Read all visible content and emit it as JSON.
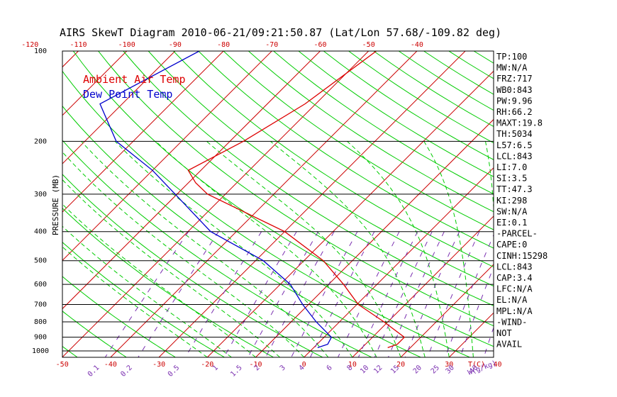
{
  "chart_data": {
    "type": "line",
    "title": "AIRS SkewT Diagram 2010-06-21/09:21:50.87 (Lat/Lon 57.68/-109.82 deg)",
    "ylabel": "PRESSURE (MB)",
    "xlabel": "T(C)",
    "mixing_ratio_unit": "W(g/kg)",
    "pressure_ticks": [
      100,
      200,
      300,
      400,
      500,
      600,
      700,
      800,
      900,
      1000
    ],
    "top_temp_ticks": [
      -120,
      -110,
      -100,
      -90,
      -80,
      -70,
      -60,
      -50,
      -40
    ],
    "bottom_temp_ticks": [
      -50,
      -40,
      -30,
      -20,
      -10,
      0,
      10,
      20,
      30,
      40
    ],
    "mixing_ratio_ticks": [
      "0.1",
      "0.2",
      "0.5",
      "1",
      "1.5",
      "2",
      "3",
      "4",
      "6",
      "8",
      "10",
      "12",
      "15",
      "20",
      "25",
      "30",
      "40"
    ],
    "legend": [
      {
        "name": "Ambient Air Temp",
        "color": "#dd0000"
      },
      {
        "name": "Dew Point Temp",
        "color": "#0000cc"
      }
    ],
    "grid": true,
    "ylim": [
      1050,
      100
    ],
    "series": [
      {
        "name": "Ambient Air Temp",
        "color": "#dd0000",
        "points": [
          {
            "p": 100,
            "t": -48.4
          },
          {
            "p": 150,
            "t": -52.2
          },
          {
            "p": 200,
            "t": -57.2
          },
          {
            "p": 250,
            "t": -62.6
          },
          {
            "p": 275,
            "t": -58.5
          },
          {
            "p": 300,
            "t": -53.7
          },
          {
            "p": 400,
            "t": -30.0
          },
          {
            "p": 500,
            "t": -16.0
          },
          {
            "p": 600,
            "t": -6.9
          },
          {
            "p": 700,
            "t": 0.3
          },
          {
            "p": 800,
            "t": 9.2
          },
          {
            "p": 900,
            "t": 16.6
          },
          {
            "p": 950,
            "t": 16.6
          },
          {
            "p": 975,
            "t": 15.3
          }
        ]
      },
      {
        "name": "Dew Point Temp",
        "color": "#0000cc",
        "points": [
          {
            "p": 100,
            "t": -85.0
          },
          {
            "p": 150,
            "t": -94.6
          },
          {
            "p": 200,
            "t": -83.5
          },
          {
            "p": 250,
            "t": -70.0
          },
          {
            "p": 300,
            "t": -60.4
          },
          {
            "p": 400,
            "t": -45.3
          },
          {
            "p": 500,
            "t": -28.4
          },
          {
            "p": 600,
            "t": -17.9
          },
          {
            "p": 700,
            "t": -11.2
          },
          {
            "p": 800,
            "t": -4.8
          },
          {
            "p": 900,
            "t": 1.5
          },
          {
            "p": 950,
            "t": 2.2
          },
          {
            "p": 975,
            "t": 0.8
          }
        ]
      }
    ],
    "indices": [
      "TP:100",
      "MW:N/A",
      "FRZ:717",
      "WB0:843",
      "PW:9.96",
      "RH:66.2",
      "MAXT:19.8",
      "TH:5034",
      "L57:6.5",
      "LCL:843",
      "LI:7.0",
      "SI:3.5",
      "TT:47.3",
      "KI:298",
      "SW:N/A",
      "EI:0.1",
      "-PARCEL-",
      "CAPE:0",
      "CINH:15298",
      "LCL:843",
      "CAP:3.4",
      "LFC:N/A",
      "EL:N/A",
      "MPL:N/A",
      "-WIND-",
      "NOT",
      "AVAIL"
    ],
    "colors": {
      "isotherm": "#cc0000",
      "dry_adiabat": "#00cc00",
      "moist_adiabat": "#00cc00",
      "mixing_ratio": "#7a2fb0",
      "isobar": "#000000",
      "bottom_ticks": "#cc0000",
      "top_ticks": "#cc0000",
      "mixing_ticks": "#7a2fb0"
    }
  }
}
